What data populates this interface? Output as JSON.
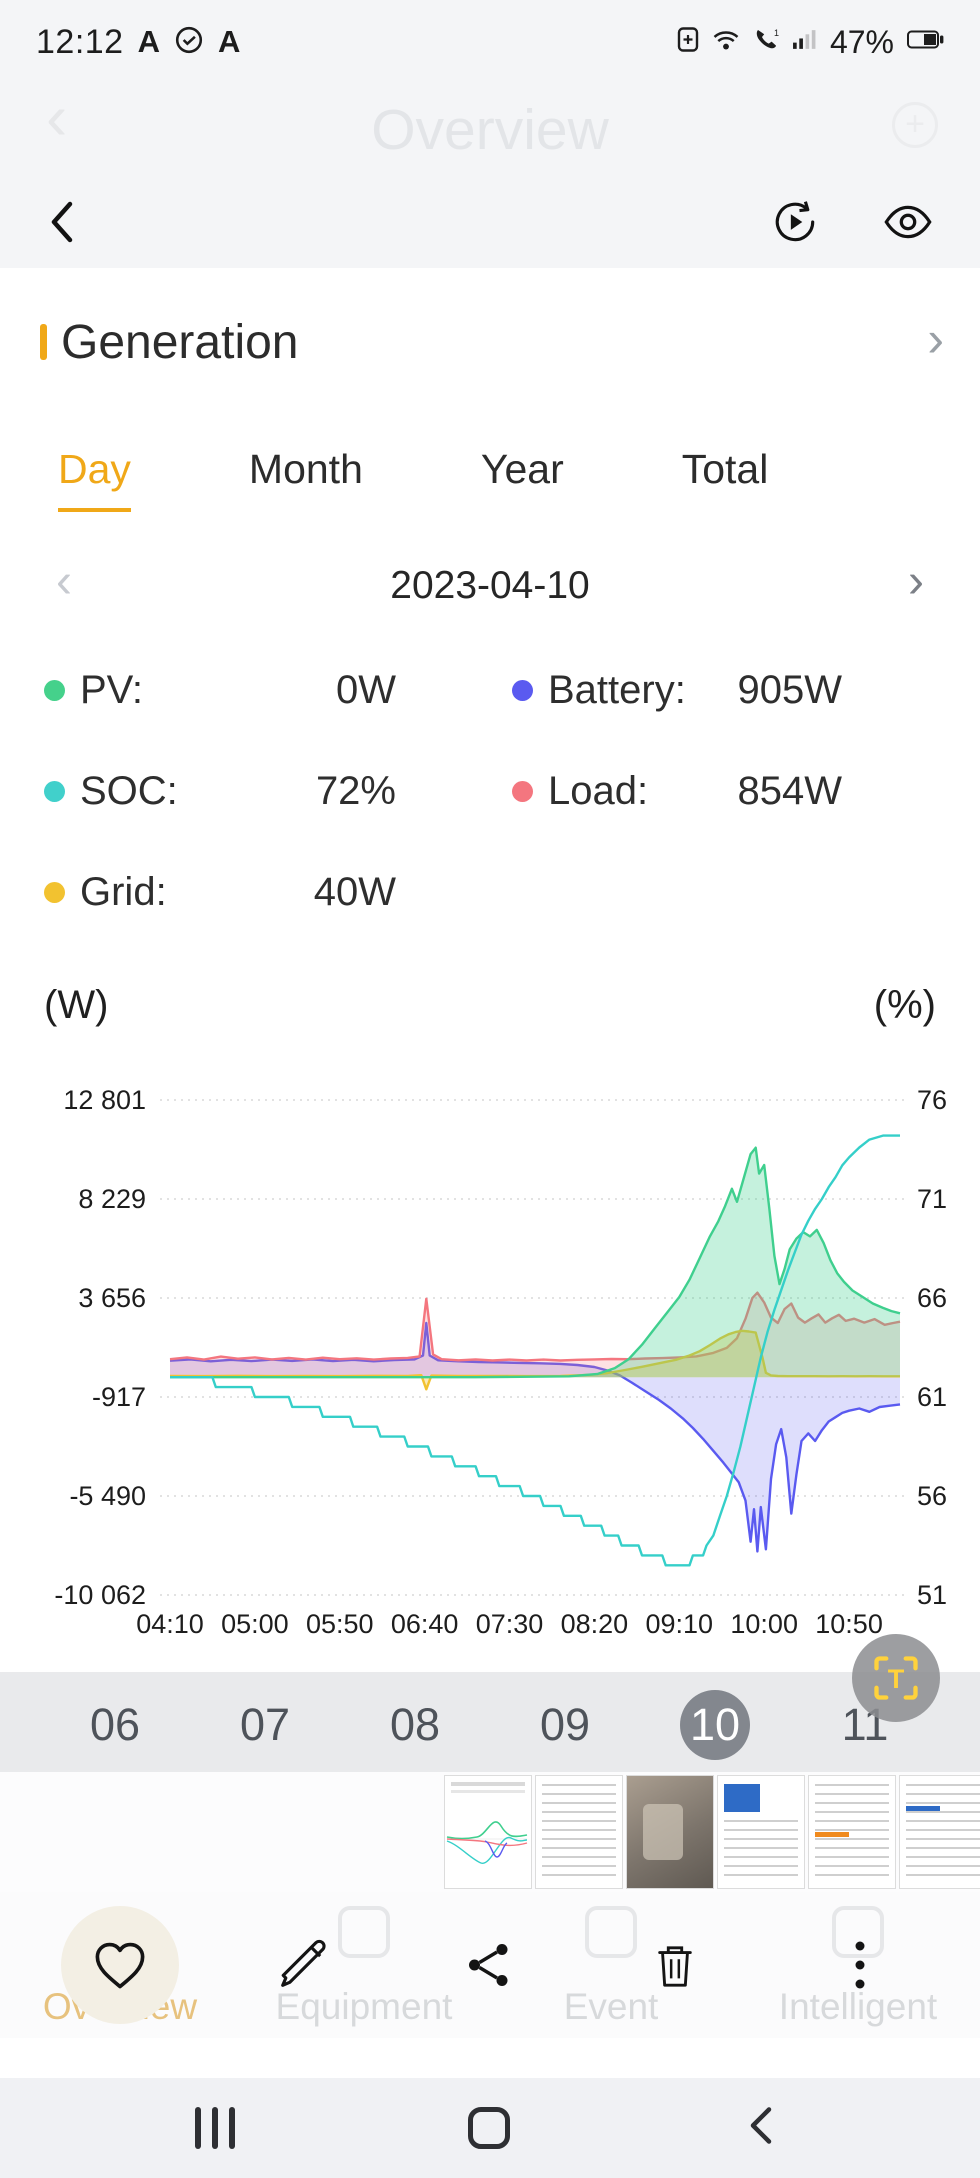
{
  "status_bar": {
    "time": "12:12",
    "battery_percent": "47%"
  },
  "ghost_header": {
    "title": "Overview",
    "back_glyph": "‹",
    "add_glyph": "+"
  },
  "header": {
    "back_glyph": "‹"
  },
  "generation": {
    "title": "Generation",
    "chevron": "›"
  },
  "tabs": {
    "selected": "Day",
    "items": [
      "Day",
      "Month",
      "Year",
      "Total"
    ]
  },
  "date_nav": {
    "prev": "‹",
    "date": "2023-04-10",
    "next": "›"
  },
  "legend": {
    "items": [
      {
        "label": "PV:",
        "value": "0W",
        "color": "#45d18b"
      },
      {
        "label": "Battery:",
        "value": "905W",
        "color": "#5a5af0"
      },
      {
        "label": "SOC:",
        "value": "72%",
        "color": "#41d0cb"
      },
      {
        "label": "Load:",
        "value": "854W",
        "color": "#f4767f"
      },
      {
        "label": "Grid:",
        "value": "40W",
        "color": "#f2c230"
      }
    ]
  },
  "axis_units": {
    "left": "(W)",
    "right": "(%)"
  },
  "chart_data": {
    "type": "line",
    "title": "Generation day curve 2023-04-10",
    "x_tick_labels": [
      "04:10",
      "05:00",
      "05:50",
      "06:40",
      "07:30",
      "08:20",
      "09:10",
      "10:00",
      "10:50"
    ],
    "x_tick_minutes": [
      0,
      50,
      100,
      150,
      200,
      250,
      300,
      350,
      400
    ],
    "x_range_minutes": [
      0,
      430
    ],
    "grid": true,
    "legend_position": "above",
    "left_axis": {
      "unit": "W",
      "ticks": [
        12801,
        8229,
        3656,
        -917,
        -5490,
        -10062
      ],
      "tick_labels": [
        "12 801",
        "8 229",
        "3 656",
        "-917",
        "-5 490",
        "-10 062"
      ]
    },
    "right_axis": {
      "unit": "%",
      "ticks": [
        76,
        71,
        66,
        61,
        56,
        51
      ],
      "tick_labels": [
        "76",
        "71",
        "66",
        "61",
        "56",
        "51"
      ]
    },
    "series": [
      {
        "name": "Battery",
        "unit": "W",
        "axis": "left",
        "color": "#5a5af0",
        "fill": "rgba(90,90,240,0.20)",
        "points": [
          [
            0,
            760
          ],
          [
            12,
            820
          ],
          [
            24,
            730
          ],
          [
            36,
            800
          ],
          [
            48,
            740
          ],
          [
            60,
            810
          ],
          [
            72,
            750
          ],
          [
            84,
            820
          ],
          [
            96,
            740
          ],
          [
            108,
            800
          ],
          [
            120,
            730
          ],
          [
            132,
            790
          ],
          [
            144,
            820
          ],
          [
            149,
            1000
          ],
          [
            151,
            2500
          ],
          [
            153,
            1000
          ],
          [
            158,
            780
          ],
          [
            170,
            730
          ],
          [
            182,
            700
          ],
          [
            194,
            680
          ],
          [
            206,
            660
          ],
          [
            218,
            640
          ],
          [
            230,
            610
          ],
          [
            240,
            560
          ],
          [
            250,
            470
          ],
          [
            258,
            300
          ],
          [
            265,
            80
          ],
          [
            272,
            -250
          ],
          [
            280,
            -650
          ],
          [
            288,
            -1050
          ],
          [
            295,
            -1450
          ],
          [
            302,
            -1900
          ],
          [
            308,
            -2350
          ],
          [
            314,
            -2850
          ],
          [
            320,
            -3400
          ],
          [
            326,
            -3950
          ],
          [
            331,
            -4450
          ],
          [
            335,
            -4850
          ],
          [
            339,
            -5700
          ],
          [
            342,
            -7600
          ],
          [
            344,
            -6100
          ],
          [
            346,
            -8050
          ],
          [
            348,
            -6000
          ],
          [
            351,
            -7950
          ],
          [
            354,
            -4700
          ],
          [
            357,
            -3100
          ],
          [
            360,
            -2400
          ],
          [
            363,
            -3700
          ],
          [
            366,
            -6300
          ],
          [
            369,
            -4500
          ],
          [
            372,
            -2950
          ],
          [
            376,
            -2600
          ],
          [
            380,
            -2950
          ],
          [
            384,
            -2450
          ],
          [
            388,
            -2050
          ],
          [
            392,
            -1850
          ],
          [
            396,
            -1650
          ],
          [
            400,
            -1550
          ],
          [
            406,
            -1450
          ],
          [
            412,
            -1600
          ],
          [
            418,
            -1380
          ],
          [
            424,
            -1320
          ],
          [
            430,
            -1260
          ]
        ]
      },
      {
        "name": "Load",
        "unit": "W",
        "axis": "left",
        "color": "#f4767f",
        "fill": "rgba(244,118,127,0.22)",
        "points": [
          [
            0,
            830
          ],
          [
            10,
            910
          ],
          [
            20,
            810
          ],
          [
            30,
            950
          ],
          [
            40,
            850
          ],
          [
            50,
            910
          ],
          [
            60,
            820
          ],
          [
            70,
            890
          ],
          [
            80,
            810
          ],
          [
            90,
            900
          ],
          [
            100,
            830
          ],
          [
            110,
            870
          ],
          [
            120,
            810
          ],
          [
            130,
            860
          ],
          [
            140,
            890
          ],
          [
            147,
            960
          ],
          [
            151,
            3620
          ],
          [
            155,
            1050
          ],
          [
            160,
            830
          ],
          [
            170,
            780
          ],
          [
            180,
            820
          ],
          [
            190,
            770
          ],
          [
            200,
            810
          ],
          [
            210,
            770
          ],
          [
            220,
            810
          ],
          [
            230,
            770
          ],
          [
            240,
            800
          ],
          [
            250,
            820
          ],
          [
            260,
            840
          ],
          [
            270,
            830
          ],
          [
            280,
            860
          ],
          [
            290,
            880
          ],
          [
            300,
            910
          ],
          [
            310,
            960
          ],
          [
            320,
            1120
          ],
          [
            328,
            1350
          ],
          [
            334,
            1800
          ],
          [
            339,
            2700
          ],
          [
            343,
            3650
          ],
          [
            346,
            3900
          ],
          [
            350,
            3450
          ],
          [
            354,
            2750
          ],
          [
            358,
            2500
          ],
          [
            362,
            3150
          ],
          [
            366,
            3400
          ],
          [
            370,
            2750
          ],
          [
            374,
            2520
          ],
          [
            378,
            2720
          ],
          [
            382,
            2900
          ],
          [
            386,
            2520
          ],
          [
            390,
            2720
          ],
          [
            394,
            2880
          ],
          [
            398,
            2600
          ],
          [
            403,
            2700
          ],
          [
            409,
            2520
          ],
          [
            415,
            2680
          ],
          [
            421,
            2420
          ],
          [
            426,
            2500
          ],
          [
            430,
            2560
          ]
        ]
      },
      {
        "name": "Grid",
        "unit": "W",
        "axis": "left",
        "color": "#f2c230",
        "fill": "rgba(242,194,48,0.35)",
        "points": [
          [
            0,
            60
          ],
          [
            20,
            50
          ],
          [
            40,
            62
          ],
          [
            60,
            48
          ],
          [
            80,
            60
          ],
          [
            100,
            50
          ],
          [
            120,
            62
          ],
          [
            140,
            58
          ],
          [
            148,
            90
          ],
          [
            151,
            -560
          ],
          [
            154,
            70
          ],
          [
            170,
            52
          ],
          [
            190,
            60
          ],
          [
            210,
            50
          ],
          [
            230,
            60
          ],
          [
            248,
            110
          ],
          [
            258,
            190
          ],
          [
            268,
            330
          ],
          [
            278,
            480
          ],
          [
            288,
            640
          ],
          [
            298,
            800
          ],
          [
            306,
            1000
          ],
          [
            312,
            1200
          ],
          [
            318,
            1480
          ],
          [
            324,
            1780
          ],
          [
            329,
            1980
          ],
          [
            333,
            2080
          ],
          [
            337,
            2140
          ],
          [
            341,
            2110
          ],
          [
            345,
            2060
          ],
          [
            349,
            900
          ],
          [
            351,
            200
          ],
          [
            354,
            80
          ],
          [
            358,
            55
          ],
          [
            364,
            45
          ],
          [
            372,
            42
          ],
          [
            380,
            46
          ],
          [
            388,
            40
          ],
          [
            396,
            44
          ],
          [
            404,
            40
          ],
          [
            412,
            42
          ],
          [
            420,
            40
          ],
          [
            430,
            40
          ]
        ]
      },
      {
        "name": "PV",
        "unit": "W",
        "axis": "left",
        "color": "#3fcf8e",
        "fill": "rgba(63,207,142,0.30)",
        "points": [
          [
            0,
            0
          ],
          [
            60,
            0
          ],
          [
            120,
            0
          ],
          [
            180,
            0
          ],
          [
            235,
            40
          ],
          [
            252,
            150
          ],
          [
            262,
            420
          ],
          [
            270,
            820
          ],
          [
            278,
            1500
          ],
          [
            286,
            2300
          ],
          [
            293,
            3000
          ],
          [
            300,
            3700
          ],
          [
            306,
            4500
          ],
          [
            312,
            5500
          ],
          [
            318,
            6500
          ],
          [
            323,
            7200
          ],
          [
            327,
            7900
          ],
          [
            331,
            8700
          ],
          [
            334,
            8100
          ],
          [
            338,
            9200
          ],
          [
            342,
            10300
          ],
          [
            345,
            10600
          ],
          [
            347,
            9400
          ],
          [
            350,
            9800
          ],
          [
            353,
            7800
          ],
          [
            356,
            5600
          ],
          [
            359,
            4300
          ],
          [
            362,
            5000
          ],
          [
            365,
            5900
          ],
          [
            369,
            6400
          ],
          [
            373,
            6700
          ],
          [
            377,
            6500
          ],
          [
            381,
            6800
          ],
          [
            385,
            6200
          ],
          [
            389,
            5400
          ],
          [
            393,
            4800
          ],
          [
            397,
            4400
          ],
          [
            402,
            4000
          ],
          [
            408,
            3700
          ],
          [
            414,
            3400
          ],
          [
            420,
            3200
          ],
          [
            425,
            3050
          ],
          [
            430,
            2950
          ]
        ]
      },
      {
        "name": "SOC",
        "unit": "%",
        "axis": "right",
        "color": "#35cfc9",
        "fill": "none",
        "points": [
          [
            0,
            62
          ],
          [
            25,
            62
          ],
          [
            27,
            61.5
          ],
          [
            48,
            61.5
          ],
          [
            50,
            61
          ],
          [
            70,
            61
          ],
          [
            72,
            60.5
          ],
          [
            88,
            60.5
          ],
          [
            90,
            60
          ],
          [
            106,
            60
          ],
          [
            108,
            59.5
          ],
          [
            122,
            59.5
          ],
          [
            124,
            59
          ],
          [
            138,
            59
          ],
          [
            140,
            58.5
          ],
          [
            152,
            58.5
          ],
          [
            154,
            58
          ],
          [
            166,
            58
          ],
          [
            168,
            57.5
          ],
          [
            180,
            57.5
          ],
          [
            182,
            57
          ],
          [
            192,
            57
          ],
          [
            194,
            56.5
          ],
          [
            206,
            56.5
          ],
          [
            208,
            56
          ],
          [
            218,
            56
          ],
          [
            220,
            55.5
          ],
          [
            230,
            55.5
          ],
          [
            232,
            55
          ],
          [
            242,
            55
          ],
          [
            244,
            54.5
          ],
          [
            254,
            54.5
          ],
          [
            256,
            54
          ],
          [
            264,
            54
          ],
          [
            266,
            53.5
          ],
          [
            276,
            53.5
          ],
          [
            278,
            53
          ],
          [
            290,
            53
          ],
          [
            292,
            52.5
          ],
          [
            306,
            52.5
          ],
          [
            308,
            53
          ],
          [
            314,
            53
          ],
          [
            316,
            53.5
          ],
          [
            320,
            54
          ],
          [
            324,
            55
          ],
          [
            328,
            56
          ],
          [
            332,
            57.2
          ],
          [
            336,
            58.5
          ],
          [
            340,
            60
          ],
          [
            344,
            61.5
          ],
          [
            348,
            63
          ],
          [
            352,
            64.3
          ],
          [
            356,
            65.4
          ],
          [
            360,
            66.4
          ],
          [
            364,
            67.4
          ],
          [
            368,
            68.3
          ],
          [
            372,
            69.2
          ],
          [
            376,
            69.9
          ],
          [
            380,
            70.5
          ],
          [
            384,
            71
          ],
          [
            388,
            71.6
          ],
          [
            392,
            72.1
          ],
          [
            396,
            72.7
          ],
          [
            400,
            73.1
          ],
          [
            406,
            73.6
          ],
          [
            412,
            74
          ],
          [
            420,
            74.2
          ],
          [
            430,
            74.2
          ]
        ]
      }
    ]
  },
  "day_scrubber": {
    "days": [
      "06",
      "07",
      "08",
      "09",
      "10",
      "11"
    ],
    "selected": "10"
  },
  "t_button": {
    "glyph": "T"
  },
  "faded_nav": {
    "items": [
      {
        "label": "Overview",
        "active": true
      },
      {
        "label": "Equipment",
        "active": false
      },
      {
        "label": "Event",
        "active": false
      },
      {
        "label": "Intelligent",
        "active": false
      }
    ]
  },
  "colors": {
    "accent": "#f0a818",
    "scrubber_bg": "#e9eaec",
    "selected_day_bg": "#83878e"
  }
}
